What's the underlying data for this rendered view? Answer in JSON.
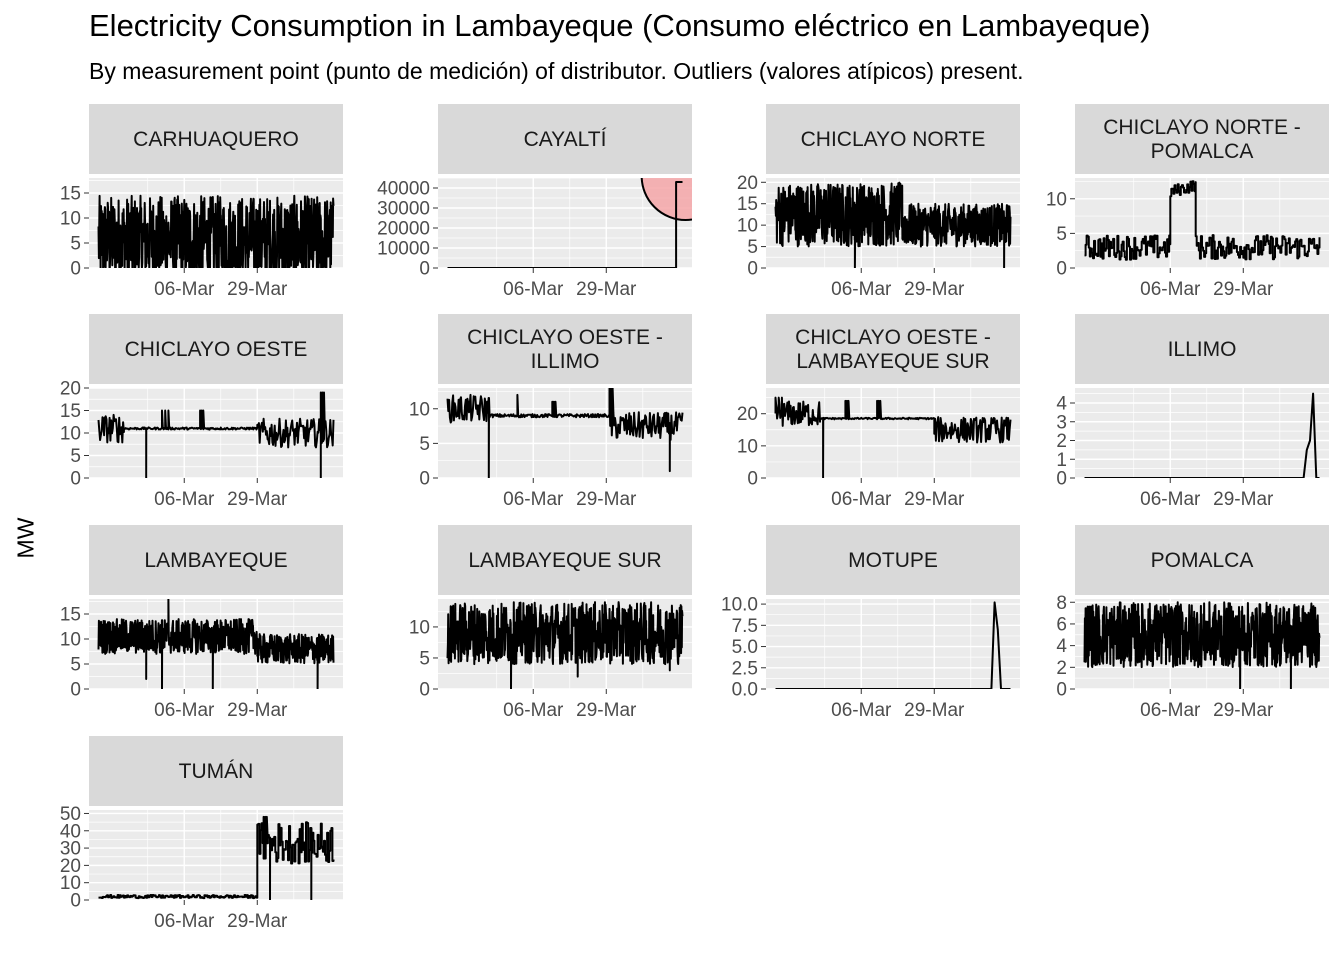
{
  "title": "Electricity Consumption in Lambayeque (Consumo eléctrico en Lambayeque)",
  "subtitle": "By measurement point (punto de medición) of distributor. Outliers (valores atípicos) present.",
  "ylabel": "MW",
  "colors": {
    "panel_bg": "#EBEBEB",
    "grid": "#FFFFFF",
    "strip_bg": "#D9D9D9",
    "line": "#000000",
    "highlight_fill": "#F4A6A8",
    "highlight_stroke": "#000000"
  },
  "chart_data": {
    "type": "line",
    "layout": "facet-wrap 4 columns",
    "x_axis": {
      "type": "date",
      "range": [
        "2023-02-04",
        "2023-04-25"
      ],
      "ticks": [
        {
          "date": "2023-03-06",
          "label": "06-Mar"
        },
        {
          "date": "2023-03-29",
          "label": "29-Mar"
        }
      ]
    },
    "facets": [
      {
        "title": [
          "CARHUAQUERO"
        ],
        "ylim": [
          0,
          18
        ],
        "yticks": [
          0,
          5,
          10,
          15
        ],
        "pattern": "noisy",
        "segments": [
          [
            "2023-02-07",
            "2023-04-22",
            5.5,
            5.5,
            9
          ]
        ],
        "dips": []
      },
      {
        "title": [
          "CAYALTÍ"
        ],
        "ylim": [
          0,
          45000
        ],
        "yticks": [
          0,
          10000,
          20000,
          30000,
          40000
        ],
        "pattern": "constant",
        "segments": [
          [
            "2023-02-07",
            "2023-04-20",
            0,
            0,
            0
          ]
        ],
        "spikes": [
          [
            "2023-04-20",
            "2023-04-22",
            43000
          ]
        ],
        "highlight": {
          "date": "2023-04-23",
          "value": 46000,
          "label": "outlier"
        }
      },
      {
        "title": [
          "CHICLAYO NORTE"
        ],
        "ylim": [
          0,
          21
        ],
        "yticks": [
          0,
          5,
          10,
          15,
          20
        ],
        "pattern": "noisy",
        "segments": [
          [
            "2023-02-07",
            "2023-03-19",
            12.5,
            12.5,
            7.5
          ],
          [
            "2023-03-19",
            "2023-04-22",
            10,
            10,
            5
          ]
        ],
        "dips": [
          [
            "2023-03-04",
            0
          ],
          [
            "2023-03-19",
            9
          ],
          [
            "2023-04-20",
            0
          ]
        ]
      },
      {
        "title": [
          "CHICLAYO NORTE -",
          "POMALCA"
        ],
        "ylim": [
          0,
          13
        ],
        "yticks": [
          0,
          5,
          10
        ],
        "pattern": "steps",
        "segments": [
          [
            "2023-02-07",
            "2023-03-06",
            3,
            3,
            3
          ],
          [
            "2023-03-06",
            "2023-03-14",
            11,
            12,
            1.5
          ],
          [
            "2023-03-14",
            "2023-04-22",
            3,
            3,
            3
          ]
        ],
        "dips": []
      },
      {
        "title": [
          "CHICLAYO OESTE"
        ],
        "ylim": [
          0,
          20
        ],
        "yticks": [
          0,
          5,
          10,
          15,
          20
        ],
        "pattern": "flat",
        "segments": [
          [
            "2023-02-07",
            "2023-02-15",
            11,
            11,
            4
          ],
          [
            "2023-02-15",
            "2023-03-29",
            11,
            11,
            0.3
          ],
          [
            "2023-03-29",
            "2023-04-22",
            10,
            10,
            4
          ]
        ],
        "dips": [
          [
            "2023-02-22",
            0
          ],
          [
            "2023-04-18",
            0
          ]
        ],
        "spikes": [
          [
            "2023-02-27",
            "2023-02-29",
            15
          ],
          [
            "2023-03-11",
            "2023-03-12",
            15
          ],
          [
            "2023-04-18",
            "2023-04-19",
            19
          ]
        ]
      },
      {
        "title": [
          "CHICLAYO OESTE -",
          "ILLIMO"
        ],
        "ylim": [
          0,
          13
        ],
        "yticks": [
          0,
          5,
          10
        ],
        "pattern": "flat",
        "segments": [
          [
            "2023-02-07",
            "2023-02-20",
            10,
            10,
            2.5
          ],
          [
            "2023-02-20",
            "2023-03-30",
            9,
            9,
            0.3
          ],
          [
            "2023-03-30",
            "2023-04-22",
            7.5,
            7.5,
            2.5
          ]
        ],
        "dips": [
          [
            "2023-02-20",
            0
          ],
          [
            "2023-04-18",
            1
          ]
        ],
        "spikes": [
          [
            "2023-02-29",
            "2023-03-01",
            12
          ],
          [
            "2023-03-12",
            "2023-03-13",
            11
          ],
          [
            "2023-03-30",
            "2023-03-31",
            13
          ]
        ]
      },
      {
        "title": [
          "CHICLAYO OESTE -",
          "LAMBAYEQUE SUR"
        ],
        "ylim": [
          0,
          28
        ],
        "yticks": [
          0,
          10,
          20
        ],
        "pattern": "flat",
        "segments": [
          [
            "2023-02-07",
            "2023-02-21",
            20,
            20,
            5
          ],
          [
            "2023-02-21",
            "2023-03-29",
            18.5,
            18.5,
            0.3
          ],
          [
            "2023-03-29",
            "2023-04-22",
            15,
            15,
            5
          ]
        ],
        "dips": [
          [
            "2023-02-22",
            0
          ]
        ],
        "spikes": [
          [
            "2023-02-07",
            "2023-02-09",
            25
          ],
          [
            "2023-03-01",
            "2023-03-02",
            24
          ],
          [
            "2023-03-11",
            "2023-03-12",
            24
          ]
        ]
      },
      {
        "title": [
          "ILLIMO"
        ],
        "ylim": [
          0,
          4.8
        ],
        "yticks": [
          0,
          1,
          2,
          3,
          4
        ],
        "pattern": "constant",
        "segments": [
          [
            "2023-02-07",
            "2023-04-17",
            0,
            0,
            0
          ]
        ],
        "ramp": [
          [
            "2023-04-17",
            0
          ],
          [
            "2023-04-18",
            1.5
          ],
          [
            "2023-04-19",
            2
          ],
          [
            "2023-04-20",
            4.5
          ],
          [
            "2023-04-21",
            0
          ],
          [
            "2023-04-22",
            0
          ]
        ]
      },
      {
        "title": [
          "LAMBAYEQUE"
        ],
        "ylim": [
          0,
          18
        ],
        "yticks": [
          0,
          5,
          10,
          15
        ],
        "pattern": "noisy",
        "segments": [
          [
            "2023-02-07",
            "2023-03-29",
            10.5,
            10.5,
            3.5
          ],
          [
            "2023-03-29",
            "2023-04-22",
            8,
            8,
            3
          ]
        ],
        "dips": [
          [
            "2023-02-22",
            2
          ],
          [
            "2023-02-27",
            0
          ],
          [
            "2023-03-15",
            0
          ],
          [
            "2023-04-17",
            0
          ]
        ],
        "spikes": [
          [
            "2023-02-29",
            "2023-03-01",
            18
          ]
        ]
      },
      {
        "title": [
          "LAMBAYEQUE SUR"
        ],
        "ylim": [
          0,
          14.5
        ],
        "yticks": [
          0,
          5,
          10
        ],
        "pattern": "noisy",
        "segments": [
          [
            "2023-02-07",
            "2023-04-22",
            9,
            9,
            5
          ]
        ],
        "dips": [
          [
            "2023-02-27",
            0
          ],
          [
            "2023-03-20",
            2
          ],
          [
            "2023-04-18",
            3
          ]
        ]
      },
      {
        "title": [
          "MOTUPE"
        ],
        "ylim": [
          0,
          10.6
        ],
        "yticks": [
          0,
          2.5,
          5,
          7.5,
          10
        ],
        "ytick_labels": [
          "0.0",
          "2.5",
          "5.0",
          "7.5",
          "10.0"
        ],
        "pattern": "constant",
        "segments": [
          [
            "2023-02-07",
            "2023-04-16",
            0,
            0,
            0
          ]
        ],
        "ramp": [
          [
            "2023-04-16",
            0
          ],
          [
            "2023-04-17",
            10.2
          ],
          [
            "2023-04-18",
            7
          ],
          [
            "2023-04-19",
            0
          ],
          [
            "2023-04-22",
            0
          ]
        ]
      },
      {
        "title": [
          "POMALCA"
        ],
        "ylim": [
          0,
          8.3
        ],
        "yticks": [
          0,
          2,
          4,
          6,
          8
        ],
        "pattern": "noisy",
        "segments": [
          [
            "2023-02-07",
            "2023-04-22",
            5,
            5,
            3
          ]
        ],
        "dips": [
          [
            "2023-03-28",
            0
          ],
          [
            "2023-04-13",
            0
          ]
        ],
        "spikes": [
          [
            "2023-02-08",
            "2023-02-09",
            7.6
          ]
        ]
      },
      {
        "title": [
          "TUMÁN"
        ],
        "ylim": [
          0,
          52
        ],
        "yticks": [
          0,
          10,
          20,
          30,
          40,
          50
        ],
        "pattern": "steps",
        "segments": [
          [
            "2023-02-07",
            "2023-03-29",
            2,
            2,
            1.5
          ],
          [
            "2023-03-29",
            "2023-04-22",
            33,
            33,
            20
          ]
        ],
        "dips": [
          [
            "2023-04-02",
            0
          ],
          [
            "2023-04-15",
            0
          ]
        ],
        "spikes": [
          [
            "2023-03-31",
            "2023-04-01",
            48
          ]
        ]
      }
    ]
  }
}
